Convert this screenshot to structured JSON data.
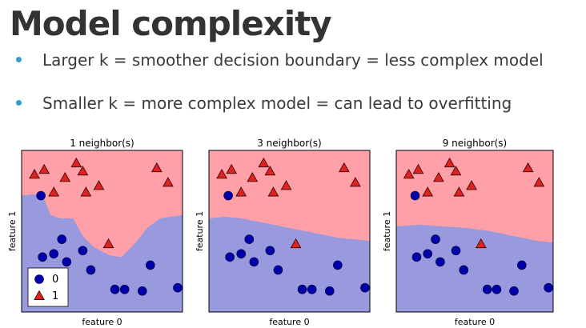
{
  "slide": {
    "title": "Model complexity",
    "bullets": [
      "Larger k = smoother decision boundary = less complex model",
      "Smaller k = more complex model = can lead to overfitting"
    ],
    "bullet_color": "#3a9cc4"
  },
  "chart_data": [
    {
      "type": "scatter",
      "title": "1 neighbor(s)",
      "xlabel": "feature 0",
      "ylabel": "feature 1",
      "xlim": [
        0,
        10
      ],
      "ylim": [
        0,
        10
      ],
      "region_colors": {
        "0": "#9999dd",
        "1": "#ffa0a8"
      },
      "boundary": [
        [
          0,
          7.2
        ],
        [
          0.8,
          7.3
        ],
        [
          1.4,
          7.0
        ],
        [
          1.8,
          6.0
        ],
        [
          2.4,
          5.8
        ],
        [
          3.2,
          5.8
        ],
        [
          3.8,
          4.7
        ],
        [
          4.5,
          4.0
        ],
        [
          5.5,
          3.5
        ],
        [
          6.2,
          3.4
        ],
        [
          7.0,
          4.2
        ],
        [
          7.8,
          5.2
        ],
        [
          8.6,
          5.8
        ],
        [
          10,
          6.0
        ]
      ],
      "series": [
        {
          "name": "0",
          "color": "#0000aa",
          "marker": "circle",
          "points": [
            [
              1.2,
              7.2
            ],
            [
              1.3,
              3.4
            ],
            [
              2.0,
              3.6
            ],
            [
              2.5,
              4.5
            ],
            [
              2.8,
              3.1
            ],
            [
              3.8,
              3.8
            ],
            [
              4.3,
              2.6
            ],
            [
              5.8,
              1.4
            ],
            [
              6.4,
              1.4
            ],
            [
              7.5,
              1.3
            ],
            [
              8.0,
              2.9
            ],
            [
              9.7,
              1.5
            ]
          ],
          "label": "0"
        },
        {
          "name": "1",
          "color": "#dd2222",
          "marker": "triangle",
          "points": [
            [
              0.8,
              8.5
            ],
            [
              1.4,
              8.8
            ],
            [
              2.0,
              7.4
            ],
            [
              2.7,
              8.3
            ],
            [
              3.4,
              9.2
            ],
            [
              3.8,
              8.7
            ],
            [
              4.0,
              7.4
            ],
            [
              4.8,
              7.8
            ],
            [
              5.4,
              4.2
            ],
            [
              8.4,
              8.9
            ],
            [
              9.1,
              8.0
            ]
          ],
          "label": "1"
        }
      ],
      "legend": {
        "position": "lower-left",
        "entries": [
          "0",
          "1"
        ]
      }
    },
    {
      "type": "scatter",
      "title": "3 neighbor(s)",
      "xlabel": "feature 0",
      "ylabel": "feature 1",
      "xlim": [
        0,
        10
      ],
      "ylim": [
        0,
        10
      ],
      "region_colors": {
        "0": "#9999dd",
        "1": "#ffa0a8"
      },
      "boundary": [
        [
          0,
          5.8
        ],
        [
          1.0,
          5.9
        ],
        [
          2.0,
          5.8
        ],
        [
          3.0,
          5.6
        ],
        [
          4.0,
          5.4
        ],
        [
          5.0,
          5.2
        ],
        [
          6.0,
          5.0
        ],
        [
          7.0,
          4.8
        ],
        [
          8.0,
          4.6
        ],
        [
          9.0,
          4.5
        ],
        [
          10,
          4.4
        ]
      ],
      "series": [
        {
          "name": "0",
          "color": "#0000aa",
          "marker": "circle",
          "points": [
            [
              1.2,
              7.2
            ],
            [
              1.3,
              3.4
            ],
            [
              2.0,
              3.6
            ],
            [
              2.5,
              4.5
            ],
            [
              2.8,
              3.1
            ],
            [
              3.8,
              3.8
            ],
            [
              4.3,
              2.6
            ],
            [
              5.8,
              1.4
            ],
            [
              6.4,
              1.4
            ],
            [
              7.5,
              1.3
            ],
            [
              8.0,
              2.9
            ],
            [
              9.7,
              1.5
            ]
          ]
        },
        {
          "name": "1",
          "color": "#dd2222",
          "marker": "triangle",
          "points": [
            [
              0.8,
              8.5
            ],
            [
              1.4,
              8.8
            ],
            [
              2.0,
              7.4
            ],
            [
              2.7,
              8.3
            ],
            [
              3.4,
              9.2
            ],
            [
              3.8,
              8.7
            ],
            [
              4.0,
              7.4
            ],
            [
              4.8,
              7.8
            ],
            [
              5.4,
              4.2
            ],
            [
              8.4,
              8.9
            ],
            [
              9.1,
              8.0
            ]
          ]
        }
      ]
    },
    {
      "type": "scatter",
      "title": "9 neighbor(s)",
      "xlabel": "feature 0",
      "ylabel": "feature 1",
      "xlim": [
        0,
        10
      ],
      "ylim": [
        0,
        10
      ],
      "region_colors": {
        "0": "#9999dd",
        "1": "#ffa0a8"
      },
      "boundary": [
        [
          0,
          5.3
        ],
        [
          1.5,
          5.4
        ],
        [
          3.0,
          5.3
        ],
        [
          4.5,
          5.2
        ],
        [
          6.0,
          5.0
        ],
        [
          7.0,
          4.8
        ],
        [
          8.0,
          4.6
        ],
        [
          9.0,
          4.4
        ],
        [
          10,
          4.3
        ]
      ],
      "series": [
        {
          "name": "0",
          "color": "#0000aa",
          "marker": "circle",
          "points": [
            [
              1.2,
              7.2
            ],
            [
              1.3,
              3.4
            ],
            [
              2.0,
              3.6
            ],
            [
              2.5,
              4.5
            ],
            [
              2.8,
              3.1
            ],
            [
              3.8,
              3.8
            ],
            [
              4.3,
              2.6
            ],
            [
              5.8,
              1.4
            ],
            [
              6.4,
              1.4
            ],
            [
              7.5,
              1.3
            ],
            [
              8.0,
              2.9
            ],
            [
              9.7,
              1.5
            ]
          ]
        },
        {
          "name": "1",
          "color": "#dd2222",
          "marker": "triangle",
          "points": [
            [
              0.8,
              8.5
            ],
            [
              1.4,
              8.8
            ],
            [
              2.0,
              7.4
            ],
            [
              2.7,
              8.3
            ],
            [
              3.4,
              9.2
            ],
            [
              3.8,
              8.7
            ],
            [
              4.0,
              7.4
            ],
            [
              4.8,
              7.8
            ],
            [
              5.4,
              4.2
            ],
            [
              8.4,
              8.9
            ],
            [
              9.1,
              8.0
            ]
          ]
        }
      ]
    }
  ]
}
